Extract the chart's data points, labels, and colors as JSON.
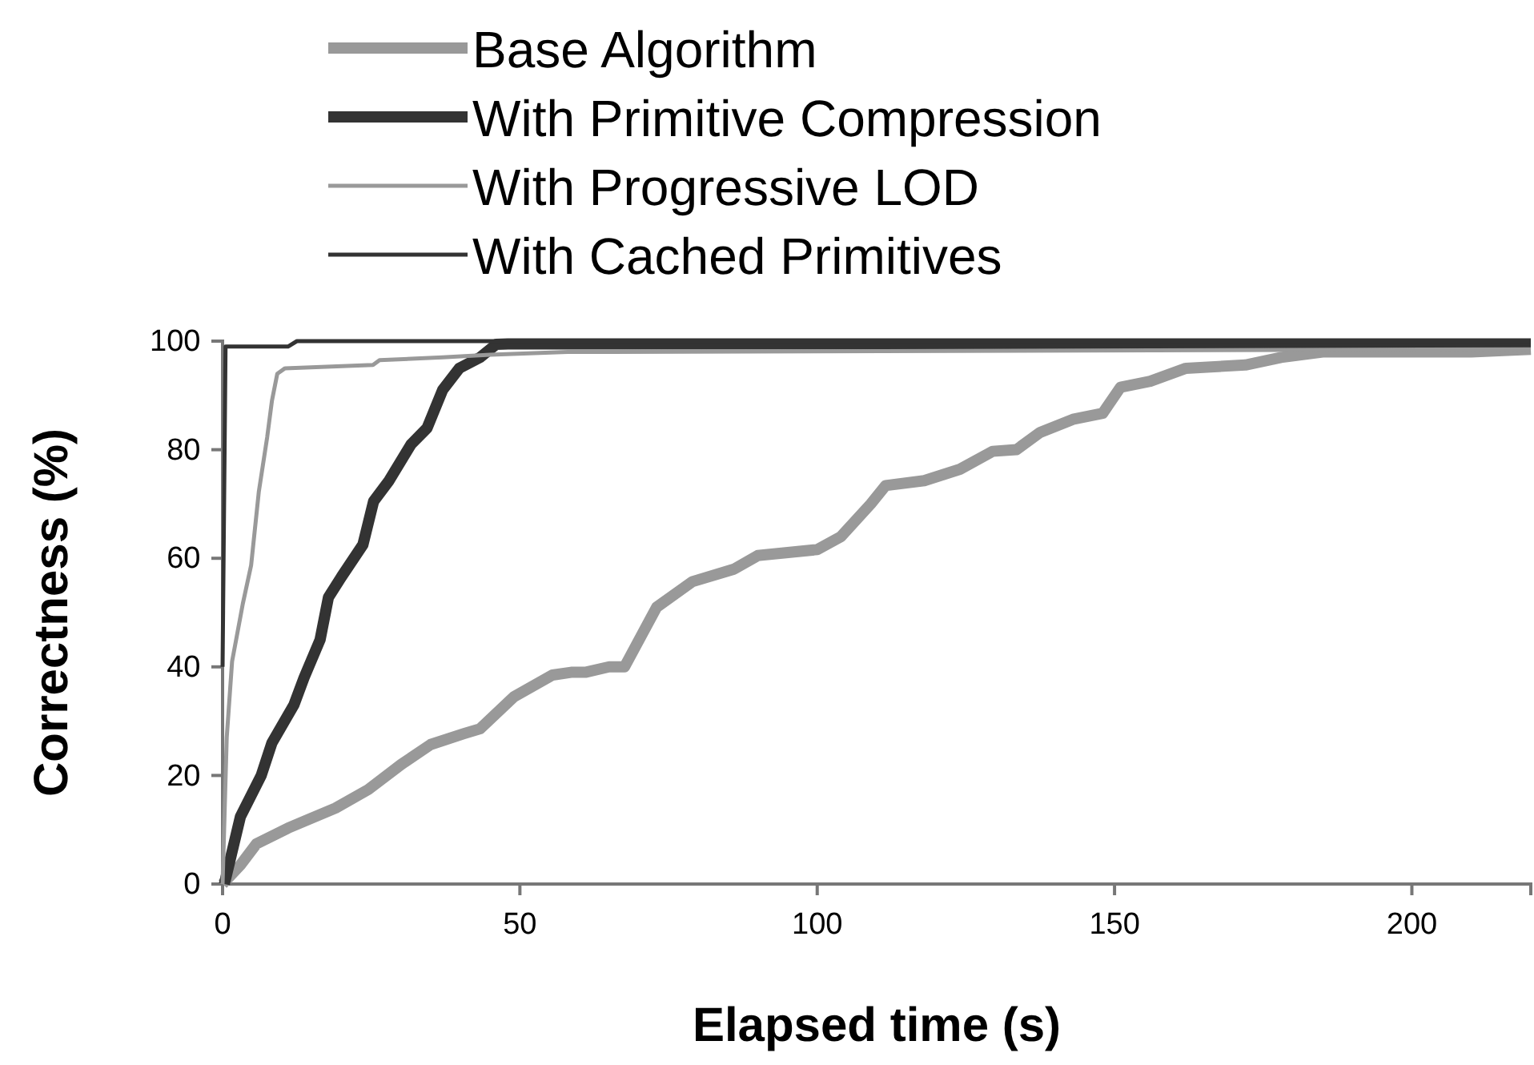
{
  "chart_data": {
    "type": "line",
    "xlabel": "Elapsed time (s)",
    "ylabel": "Correctness (%)",
    "xlim": [
      0,
      220
    ],
    "ylim": [
      0,
      100
    ],
    "xticks": [
      0,
      50,
      100,
      150,
      200
    ],
    "yticks": [
      0,
      20,
      40,
      60,
      80,
      100
    ],
    "grid": false,
    "legend": "top",
    "series": [
      {
        "name": "Base Algorithm",
        "color": "#999999",
        "x": [
          0,
          3,
          5.7,
          11,
          19,
          24.5,
          30,
          35,
          40.6,
          43.3,
          49,
          55.5,
          58.6,
          61,
          65,
          67.6,
          73,
          79,
          86,
          90,
          100,
          104,
          109,
          111.5,
          118,
          124,
          129.5,
          133.5,
          137.5,
          143,
          148,
          151,
          156,
          162,
          172,
          178,
          185,
          194,
          210,
          220
        ],
        "values": [
          0,
          3.5,
          7.4,
          10.3,
          14,
          17.4,
          22,
          25.7,
          27.7,
          28.6,
          34.5,
          38.5,
          39,
          39,
          40,
          40,
          51,
          55.7,
          58,
          60.5,
          61.6,
          64,
          70,
          73.4,
          74.3,
          76.4,
          79.7,
          80,
          83.2,
          85.6,
          86.7,
          91.5,
          92.6,
          95,
          95.6,
          97,
          98,
          98,
          98,
          98.5
        ]
      },
      {
        "name": "With Primitive Compression",
        "color": "#333333",
        "x": [
          0.3,
          3,
          6.5,
          8.3,
          12,
          13.7,
          16.4,
          17.8,
          20,
          23.6,
          25.4,
          28,
          31.7,
          34.4,
          37,
          39.8,
          43.3,
          46,
          48,
          220
        ],
        "values": [
          0,
          12.4,
          20,
          26,
          33,
          38,
          45,
          52.8,
          56.6,
          62.5,
          70.5,
          74.3,
          81,
          84,
          91,
          95,
          97,
          99.4,
          99.5,
          99.5
        ]
      },
      {
        "name": "With Progressive LOD",
        "color": "#999999",
        "x": [
          0,
          0.7,
          1.6,
          2.4,
          3.4,
          4.8,
          6.1,
          7.5,
          8.3,
          9.2,
          10.5,
          25.3,
          26.4,
          37,
          45,
          58,
          220
        ],
        "values": [
          0,
          27,
          41,
          45.7,
          51.6,
          58.7,
          72.3,
          82.3,
          89,
          94,
          95,
          95.6,
          96.5,
          97,
          97.5,
          98,
          98.5
        ]
      },
      {
        "name": "With Cached Primitives",
        "color": "#333333",
        "x": [
          0,
          0.5,
          11,
          12.5,
          220
        ],
        "values": [
          40,
          99,
          99,
          100,
          100
        ]
      }
    ]
  }
}
